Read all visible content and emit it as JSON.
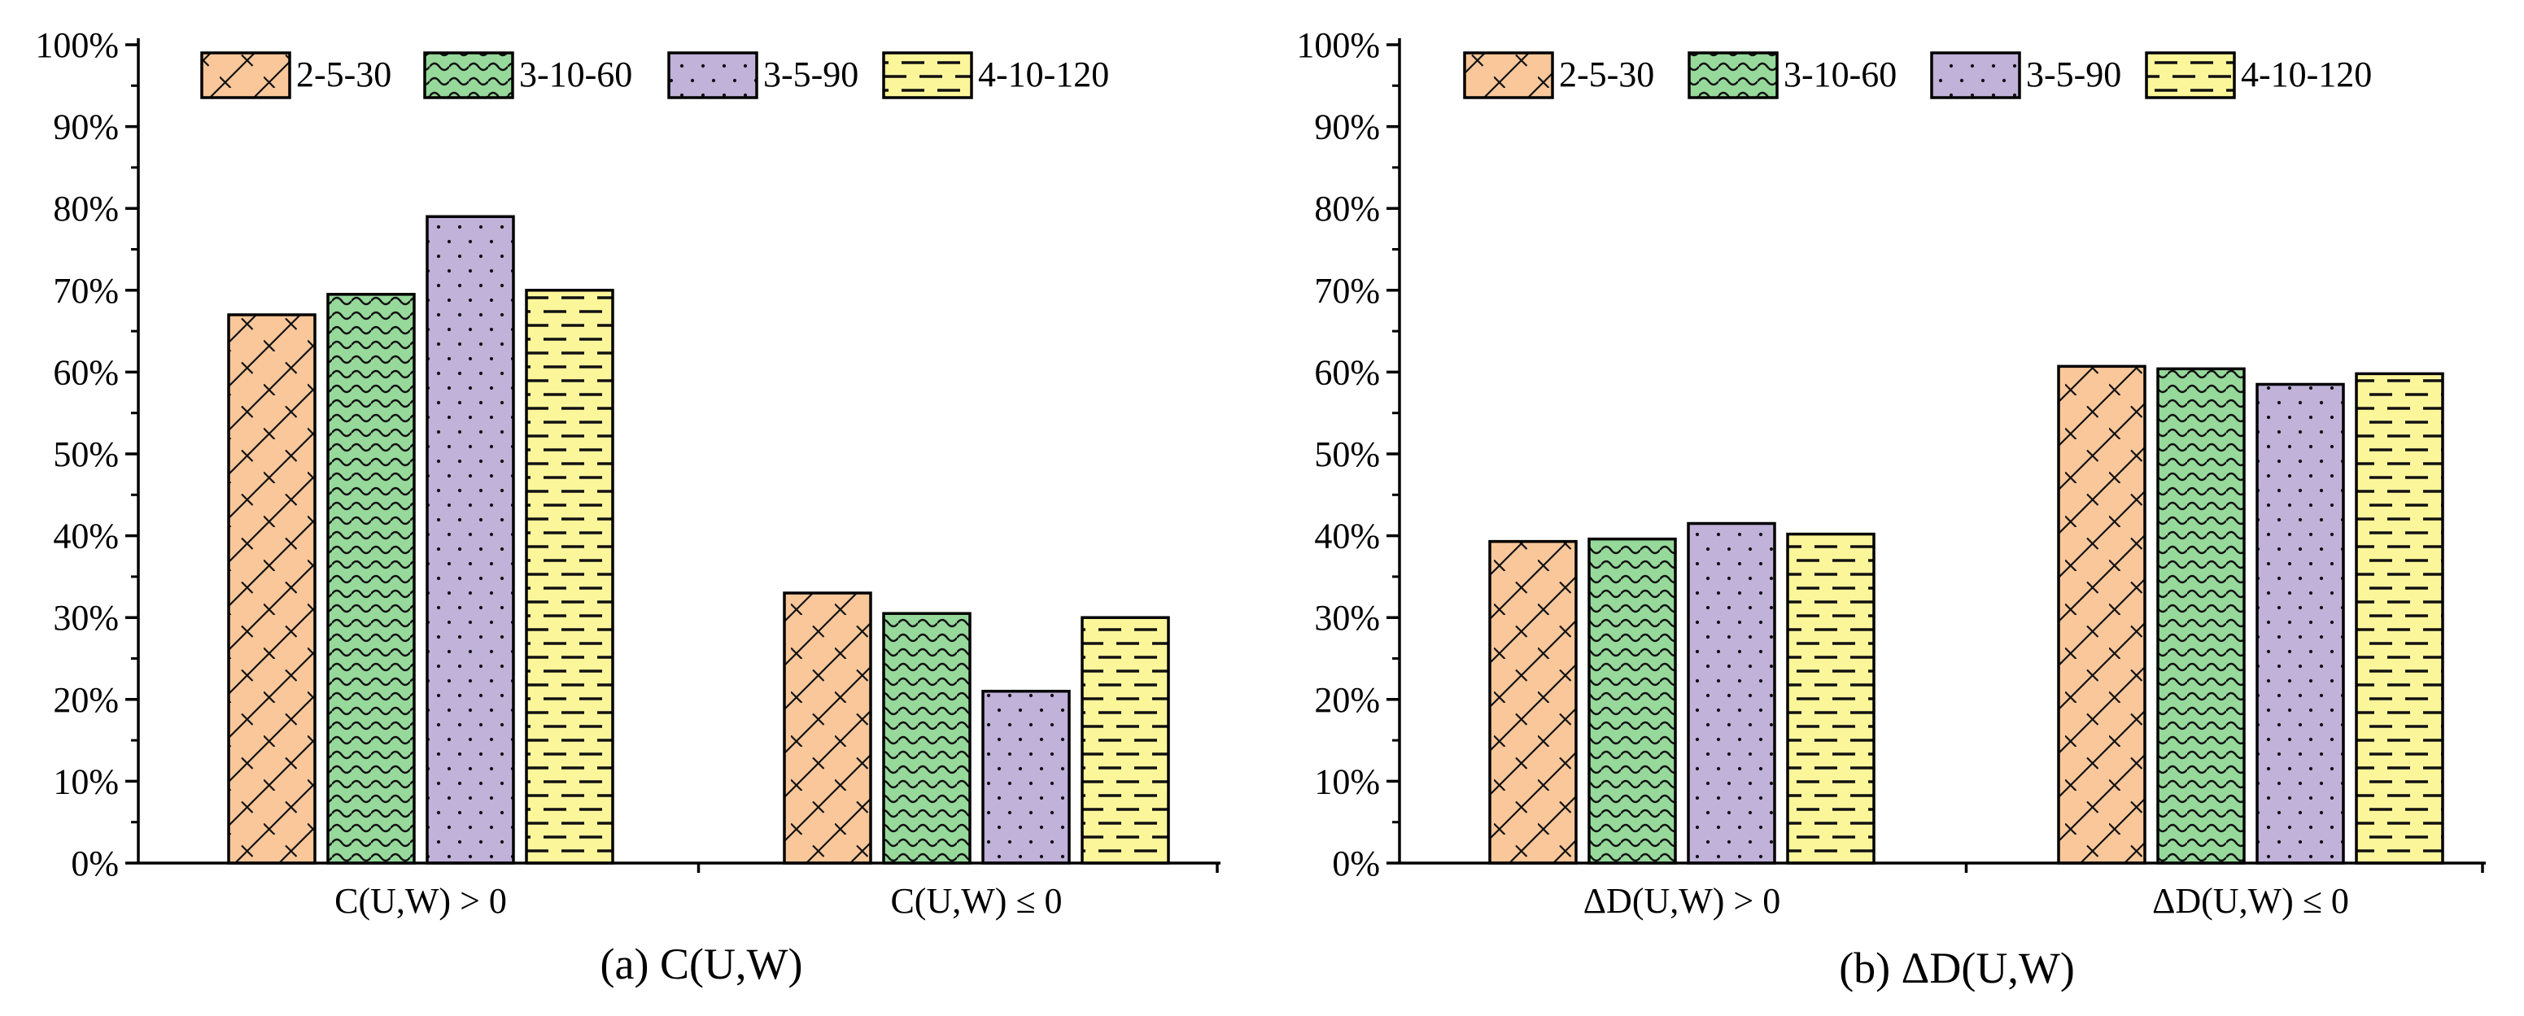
{
  "chart_data": [
    {
      "type": "bar",
      "panel": "(a) C(U,W)",
      "caption": "(a) C(U,W)",
      "categories": [
        "C(U,W) > 0",
        "C(U,W) ≤ 0"
      ],
      "yticks": [
        "0%",
        "10%",
        "20%",
        "30%",
        "40%",
        "50%",
        "60%",
        "70%",
        "80%",
        "90%",
        "100%"
      ],
      "ylim": [
        0,
        100
      ],
      "legend_position": "top-left",
      "series": [
        {
          "name": "2-5-30",
          "values": [
            67,
            33
          ],
          "color": "#f9c79a",
          "pattern": "cross-hatch"
        },
        {
          "name": "3-10-60",
          "values": [
            69.5,
            30.5
          ],
          "color": "#96d99b",
          "pattern": "wave"
        },
        {
          "name": "3-5-90",
          "values": [
            79,
            21
          ],
          "color": "#c0b2d9",
          "pattern": "dots"
        },
        {
          "name": "4-10-120",
          "values": [
            70,
            30
          ],
          "color": "#fcf69b",
          "pattern": "dashes"
        }
      ]
    },
    {
      "type": "bar",
      "panel": "(b) ΔD(U,W)",
      "caption": "(b) ΔD(U,W)",
      "categories": [
        "ΔD(U,W) > 0",
        "ΔD(U,W) ≤ 0"
      ],
      "yticks": [
        "0%",
        "10%",
        "20%",
        "30%",
        "40%",
        "50%",
        "60%",
        "70%",
        "80%",
        "90%",
        "100%"
      ],
      "ylim": [
        0,
        100
      ],
      "legend_position": "top-left",
      "series": [
        {
          "name": "2-5-30",
          "values": [
            39.3,
            60.7
          ],
          "color": "#f9c79a",
          "pattern": "cross-hatch"
        },
        {
          "name": "3-10-60",
          "values": [
            39.6,
            60.4
          ],
          "color": "#96d99b",
          "pattern": "wave"
        },
        {
          "name": "3-5-90",
          "values": [
            41.5,
            58.5
          ],
          "color": "#c0b2d9",
          "pattern": "dots"
        },
        {
          "name": "4-10-120",
          "values": [
            40.2,
            59.8
          ],
          "color": "#fcf69b",
          "pattern": "dashes"
        }
      ]
    }
  ]
}
